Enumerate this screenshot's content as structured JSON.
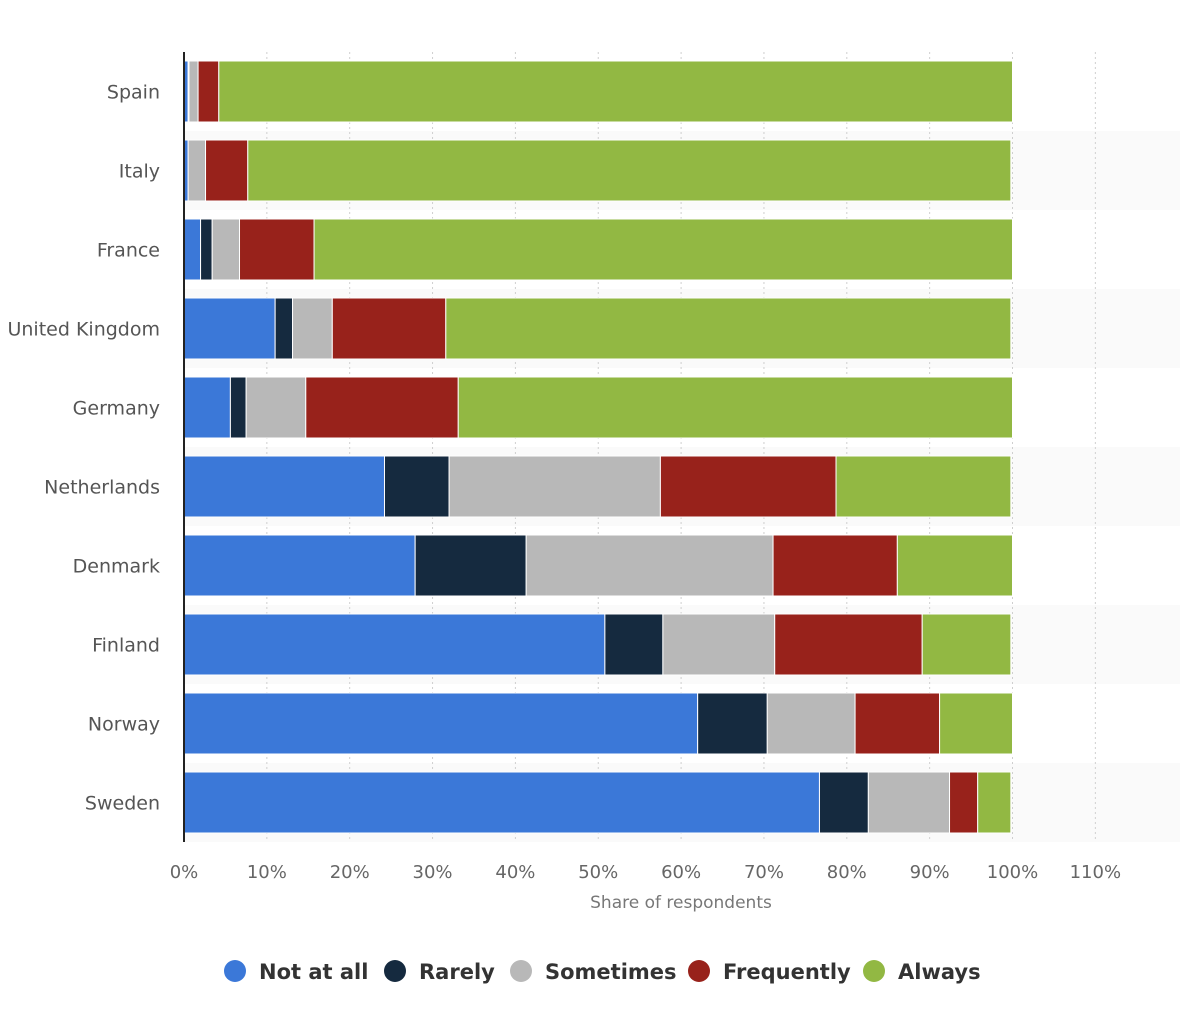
{
  "chart_data": {
    "type": "bar",
    "orientation": "horizontal",
    "stacked": true,
    "categories": [
      "Spain",
      "Italy",
      "France",
      "United Kingdom",
      "Germany",
      "Netherlands",
      "Denmark",
      "Finland",
      "Norway",
      "Sweden"
    ],
    "series": [
      {
        "name": "Not at all",
        "color": "#3b78d8",
        "values": [
          0.5,
          0.5,
          2,
          11,
          5.6,
          24.2,
          27.9,
          50.8,
          62,
          76.7
        ]
      },
      {
        "name": "Rarely",
        "color": "#152a3f",
        "values": [
          0.1,
          0,
          1.4,
          2.1,
          1.9,
          7.8,
          13.4,
          7,
          8.4,
          5.9
        ]
      },
      {
        "name": "Sometimes",
        "color": "#b8b8b8",
        "values": [
          1.1,
          2.1,
          3.3,
          4.8,
          7.2,
          25.5,
          29.8,
          13.5,
          10.6,
          9.8
        ]
      },
      {
        "name": "Frequently",
        "color": "#98221b",
        "values": [
          2.5,
          5.1,
          9,
          13.7,
          18.4,
          21.2,
          15,
          17.8,
          10.2,
          3.4
        ]
      },
      {
        "name": "Always",
        "color": "#92b843",
        "values": [
          95.8,
          92.1,
          84.3,
          68.2,
          66.9,
          21.1,
          13.9,
          10.7,
          8.8,
          4
        ]
      }
    ],
    "xlabel": "Share of respondents",
    "ylabel": "",
    "xlim": [
      0,
      120
    ],
    "xticks": [
      "0%",
      "10%",
      "20%",
      "30%",
      "40%",
      "50%",
      "60%",
      "70%",
      "80%",
      "90%",
      "100%",
      "110%"
    ],
    "grid": true,
    "legend_position": "bottom"
  }
}
